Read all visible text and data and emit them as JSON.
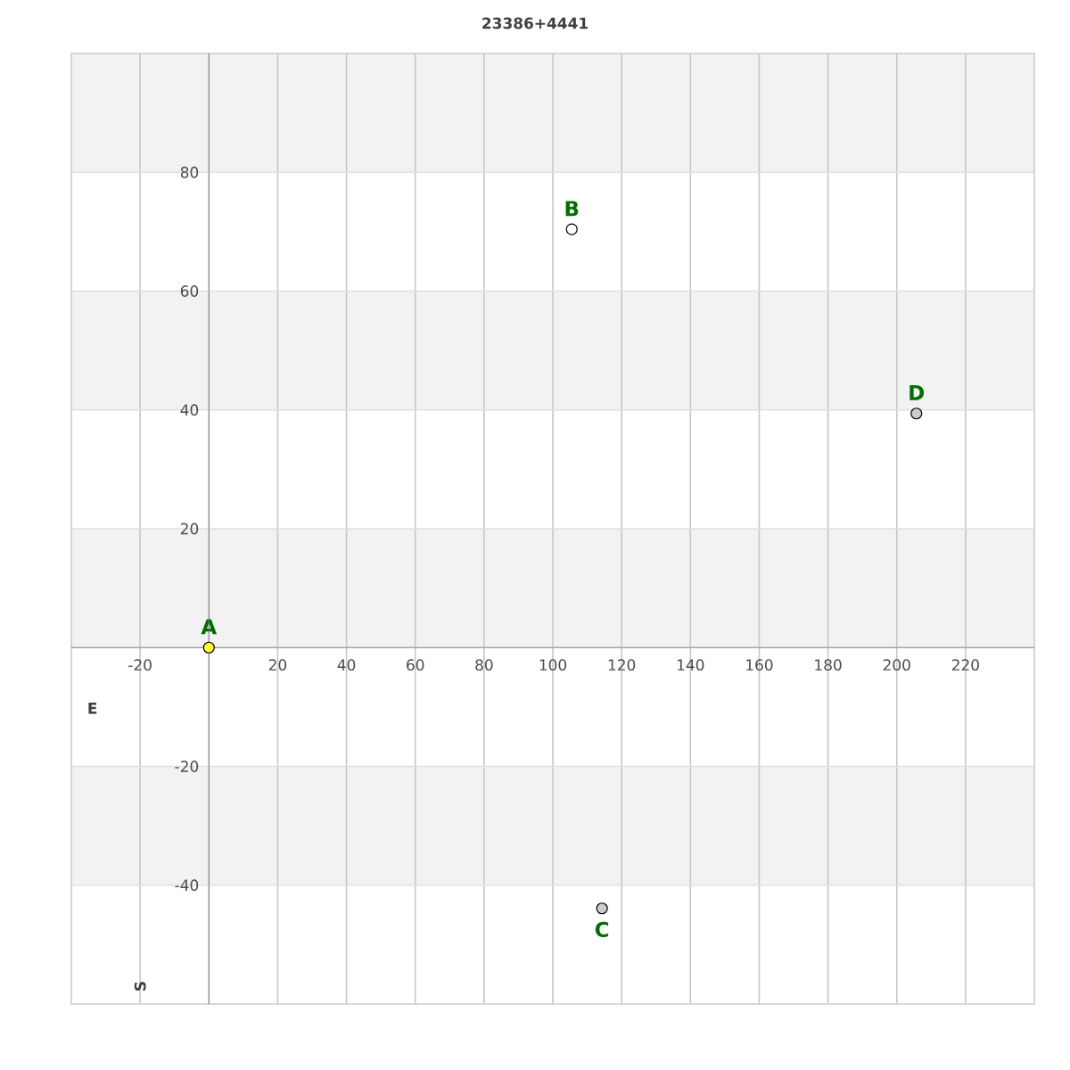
{
  "chart_data": {
    "type": "scatter",
    "title": "23386+4441",
    "series": [
      {
        "name": "A",
        "color": "#ffff33",
        "x": [
          0
        ],
        "values": [
          0
        ]
      },
      {
        "name": "B",
        "color": "#ffffff",
        "x": [
          105.5
        ],
        "values": [
          70.4
        ]
      },
      {
        "name": "C",
        "color": "#cccccc",
        "x": [
          114.3
        ],
        "values": [
          -43.9
        ]
      },
      {
        "name": "D",
        "color": "#cccccc",
        "x": [
          205.7
        ],
        "values": [
          39.4
        ]
      }
    ],
    "xlim": [
      -40,
      240
    ],
    "ylim": [
      -60,
      100
    ],
    "xticks": [
      -20,
      {
        "value": 0,
        "label": null
      },
      20,
      40,
      60,
      80,
      100,
      120,
      140,
      160,
      180,
      200,
      220
    ],
    "yticks": [
      -40,
      -20,
      {
        "value": 0,
        "label": null
      },
      20,
      40,
      60,
      80
    ],
    "bands": [
      {
        "axis": "y",
        "from": 80,
        "to": 100,
        "color": "#f2f2f2"
      },
      {
        "axis": "y",
        "from": 40,
        "to": 60,
        "color": "#f2f2f2"
      },
      {
        "axis": "y",
        "from": 0,
        "to": 20,
        "color": "#f2f2f2"
      },
      {
        "axis": "y",
        "from": -40,
        "to": -20,
        "color": "#f2f2f2"
      }
    ],
    "grid": true,
    "marker": "circle",
    "annotations": [
      "E",
      "S"
    ]
  }
}
